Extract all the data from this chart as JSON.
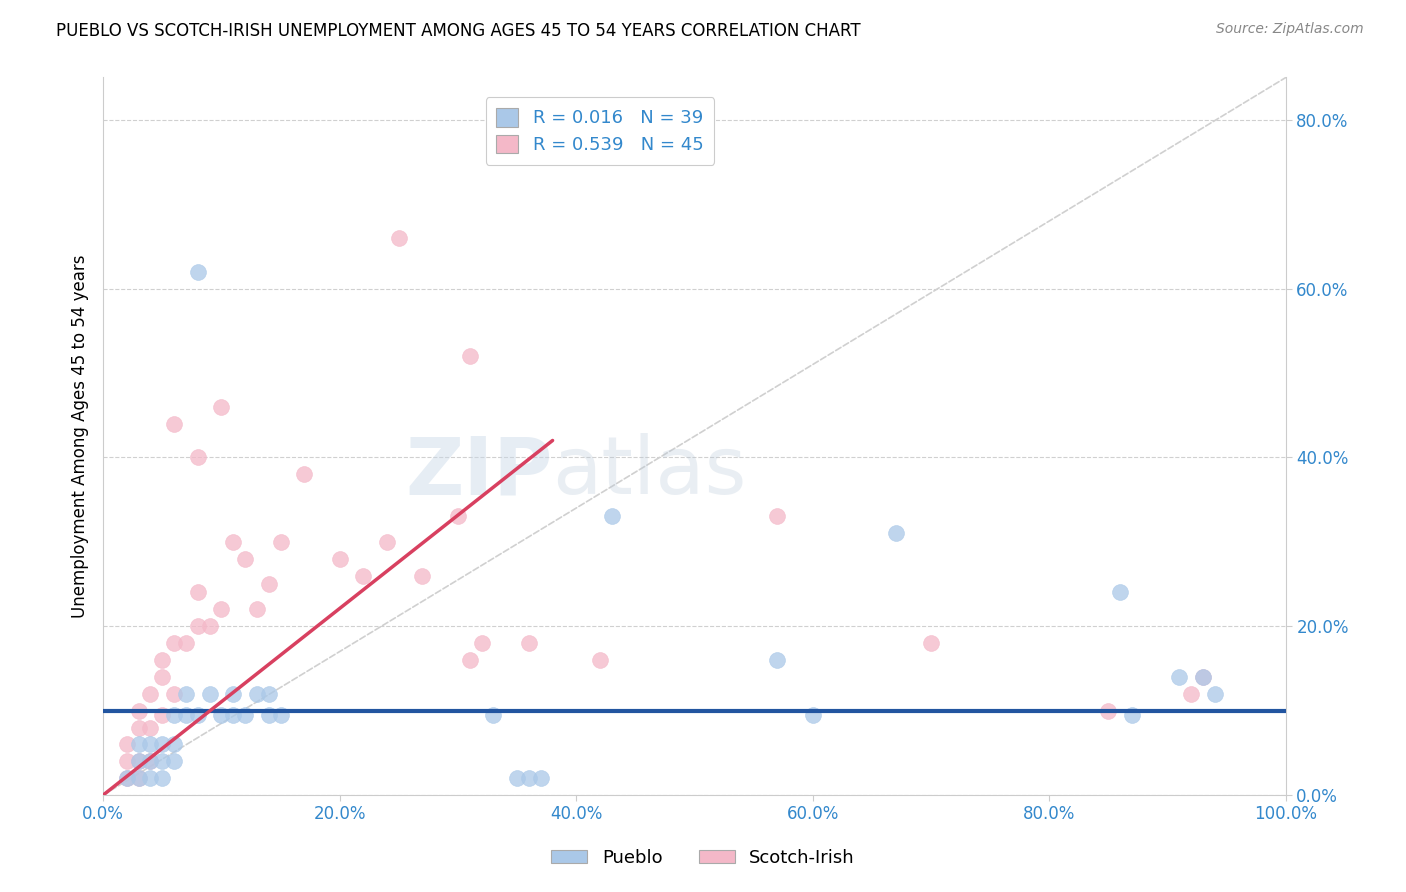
{
  "title": "PUEBLO VS SCOTCH-IRISH UNEMPLOYMENT AMONG AGES 45 TO 54 YEARS CORRELATION CHART",
  "source": "Source: ZipAtlas.com",
  "xlabel": "",
  "ylabel": "Unemployment Among Ages 45 to 54 years",
  "xlim": [
    0.0,
    1.0
  ],
  "ylim": [
    0.0,
    0.85
  ],
  "xticks": [
    0.0,
    0.2,
    0.4,
    0.6,
    0.8,
    1.0
  ],
  "yticks": [
    0.0,
    0.2,
    0.4,
    0.6,
    0.8
  ],
  "xticklabels": [
    "0.0%",
    "20.0%",
    "40.0%",
    "60.0%",
    "80.0%",
    "100.0%"
  ],
  "yticklabels": [
    "0.0%",
    "20.0%",
    "40.0%",
    "60.0%",
    "80.0%"
  ],
  "pueblo_R": "0.016",
  "pueblo_N": "39",
  "scotch_irish_R": "0.539",
  "scotch_irish_N": "45",
  "pueblo_color": "#aac8e8",
  "scotch_irish_color": "#f4b8c8",
  "pueblo_line_color": "#2255a0",
  "scotch_irish_line_color": "#d84060",
  "diagonal_color": "#d0d0d0",
  "background_color": "#ffffff",
  "grid_color": "#d0d0d0",
  "legend_text_color": "#3388cc",
  "pueblo_scatter": [
    [
      0.08,
      0.62
    ],
    [
      0.11,
      0.095
    ],
    [
      0.14,
      0.095
    ],
    [
      0.02,
      0.02
    ],
    [
      0.03,
      0.02
    ],
    [
      0.03,
      0.04
    ],
    [
      0.03,
      0.06
    ],
    [
      0.04,
      0.02
    ],
    [
      0.04,
      0.04
    ],
    [
      0.04,
      0.06
    ],
    [
      0.05,
      0.02
    ],
    [
      0.05,
      0.04
    ],
    [
      0.05,
      0.06
    ],
    [
      0.06,
      0.04
    ],
    [
      0.06,
      0.06
    ],
    [
      0.06,
      0.095
    ],
    [
      0.07,
      0.095
    ],
    [
      0.07,
      0.12
    ],
    [
      0.08,
      0.095
    ],
    [
      0.09,
      0.12
    ],
    [
      0.1,
      0.095
    ],
    [
      0.11,
      0.12
    ],
    [
      0.12,
      0.095
    ],
    [
      0.13,
      0.12
    ],
    [
      0.14,
      0.12
    ],
    [
      0.15,
      0.095
    ],
    [
      0.33,
      0.095
    ],
    [
      0.35,
      0.02
    ],
    [
      0.36,
      0.02
    ],
    [
      0.37,
      0.02
    ],
    [
      0.43,
      0.33
    ],
    [
      0.57,
      0.16
    ],
    [
      0.6,
      0.095
    ],
    [
      0.67,
      0.31
    ],
    [
      0.86,
      0.24
    ],
    [
      0.87,
      0.095
    ],
    [
      0.91,
      0.14
    ],
    [
      0.93,
      0.14
    ],
    [
      0.94,
      0.12
    ]
  ],
  "scotch_irish_scatter": [
    [
      0.02,
      0.02
    ],
    [
      0.02,
      0.04
    ],
    [
      0.02,
      0.06
    ],
    [
      0.03,
      0.02
    ],
    [
      0.03,
      0.04
    ],
    [
      0.03,
      0.08
    ],
    [
      0.03,
      0.1
    ],
    [
      0.04,
      0.04
    ],
    [
      0.04,
      0.08
    ],
    [
      0.04,
      0.12
    ],
    [
      0.05,
      0.095
    ],
    [
      0.05,
      0.14
    ],
    [
      0.05,
      0.16
    ],
    [
      0.06,
      0.12
    ],
    [
      0.06,
      0.18
    ],
    [
      0.07,
      0.18
    ],
    [
      0.08,
      0.2
    ],
    [
      0.08,
      0.24
    ],
    [
      0.09,
      0.2
    ],
    [
      0.1,
      0.22
    ],
    [
      0.11,
      0.3
    ],
    [
      0.12,
      0.28
    ],
    [
      0.13,
      0.22
    ],
    [
      0.14,
      0.25
    ],
    [
      0.15,
      0.3
    ],
    [
      0.17,
      0.38
    ],
    [
      0.2,
      0.28
    ],
    [
      0.22,
      0.26
    ],
    [
      0.24,
      0.3
    ],
    [
      0.27,
      0.26
    ],
    [
      0.3,
      0.33
    ],
    [
      0.31,
      0.16
    ],
    [
      0.32,
      0.18
    ],
    [
      0.36,
      0.18
    ],
    [
      0.42,
      0.16
    ],
    [
      0.25,
      0.66
    ],
    [
      0.31,
      0.52
    ],
    [
      0.1,
      0.46
    ],
    [
      0.08,
      0.4
    ],
    [
      0.06,
      0.44
    ],
    [
      0.57,
      0.33
    ],
    [
      0.7,
      0.18
    ],
    [
      0.93,
      0.14
    ],
    [
      0.85,
      0.1
    ],
    [
      0.92,
      0.12
    ]
  ],
  "pueblo_line_x": [
    0.0,
    1.0
  ],
  "pueblo_line_y": [
    0.1,
    0.1
  ],
  "scotch_line_x": [
    0.0,
    0.38
  ],
  "scotch_line_y": [
    0.0,
    0.42
  ]
}
